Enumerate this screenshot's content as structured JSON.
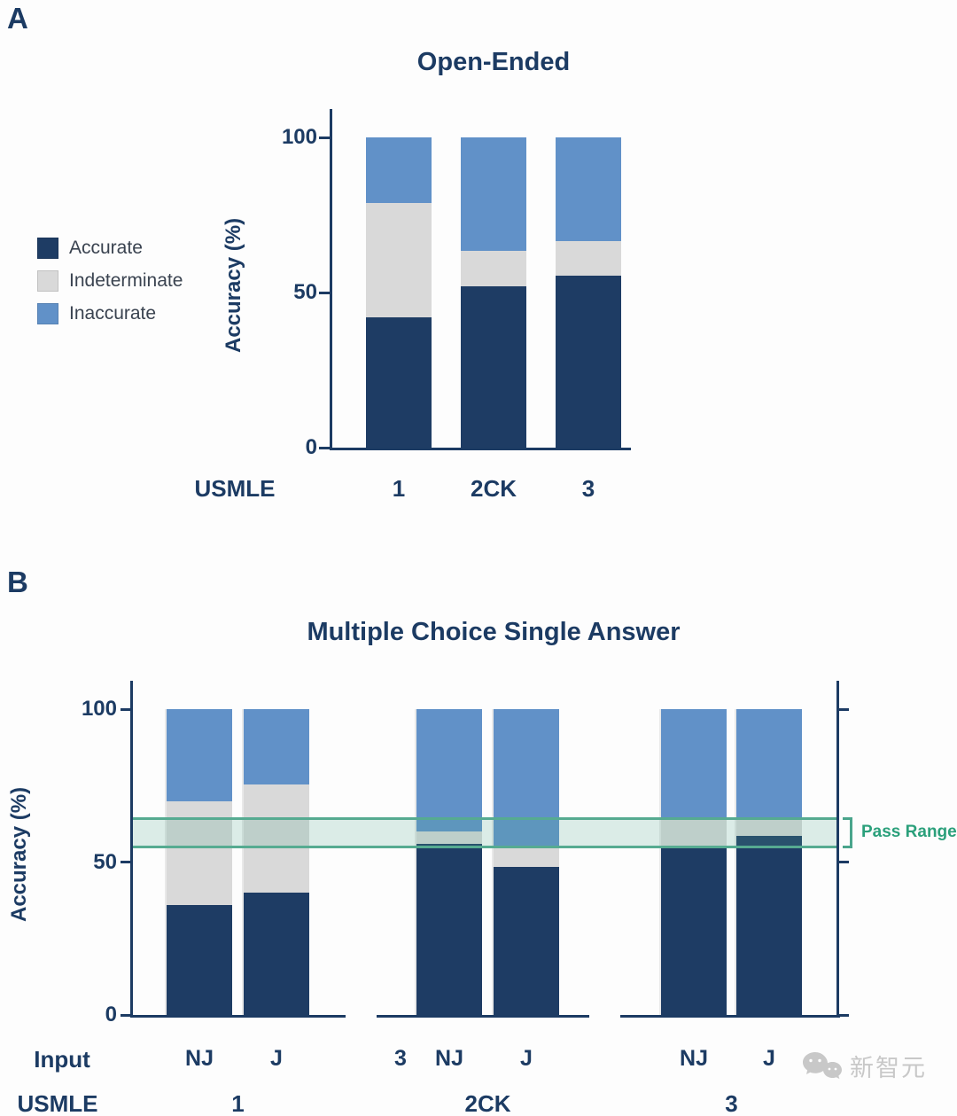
{
  "panelA": {
    "letter": "A"
  },
  "panelB": {
    "letter": "B",
    "input_caption": "Input",
    "stray_label": "3"
  },
  "watermark": {
    "text": "新智元",
    "icon": "chat-bubbles-icon"
  },
  "colors": {
    "navy_text": "#1c3b63",
    "accurate": "#1e3c64",
    "indeterminate": "#d9d9d9",
    "inaccurate": "#6191c8",
    "pass_band": "#56ab91",
    "pass_label": "#2ba07b",
    "watermark": "#c8c8c8"
  },
  "chart_data": [
    {
      "type": "bar",
      "stacked": true,
      "title": "Open-Ended",
      "xlabel": "USMLE",
      "ylabel": "Accuracy (%)",
      "ylim": [
        0,
        100
      ],
      "yticks": [
        0,
        50,
        100
      ],
      "grid": false,
      "legend_position": "left",
      "categories": [
        "1",
        "2CK",
        "3"
      ],
      "series": [
        {
          "name": "Accurate",
          "color": "#1e3c64",
          "values": [
            42,
            52,
            55.5
          ]
        },
        {
          "name": "Indeterminate",
          "color": "#d9d9d9",
          "values": [
            37,
            11.5,
            11
          ]
        },
        {
          "name": "Inaccurate",
          "color": "#6191c8",
          "values": [
            21,
            36.5,
            33.5
          ]
        }
      ]
    },
    {
      "type": "bar",
      "stacked": true,
      "title": "Multiple Choice Single Answer",
      "xlabel": "USMLE",
      "ylabel": "Accuracy (%)",
      "ylim": [
        0,
        100
      ],
      "yticks": [
        0,
        50,
        100
      ],
      "grid": false,
      "groups": [
        "1",
        "2CK",
        "3"
      ],
      "bar_inputs": [
        "NJ",
        "J",
        "NJ",
        "J",
        "NJ",
        "J"
      ],
      "series": [
        {
          "name": "Accurate",
          "color": "#1e3c64",
          "values": [
            36,
            40,
            56,
            48.5,
            55,
            58.5
          ]
        },
        {
          "name": "Indeterminate",
          "color": "#d9d9d9",
          "values": [
            34,
            35.5,
            4,
            6.5,
            9,
            6
          ]
        },
        {
          "name": "Inaccurate",
          "color": "#6191c8",
          "values": [
            30,
            24.5,
            40,
            45,
            36,
            35.5
          ]
        }
      ],
      "pass_range": {
        "label": "Pass Range",
        "low": 54.5,
        "high": 64.5
      }
    }
  ]
}
